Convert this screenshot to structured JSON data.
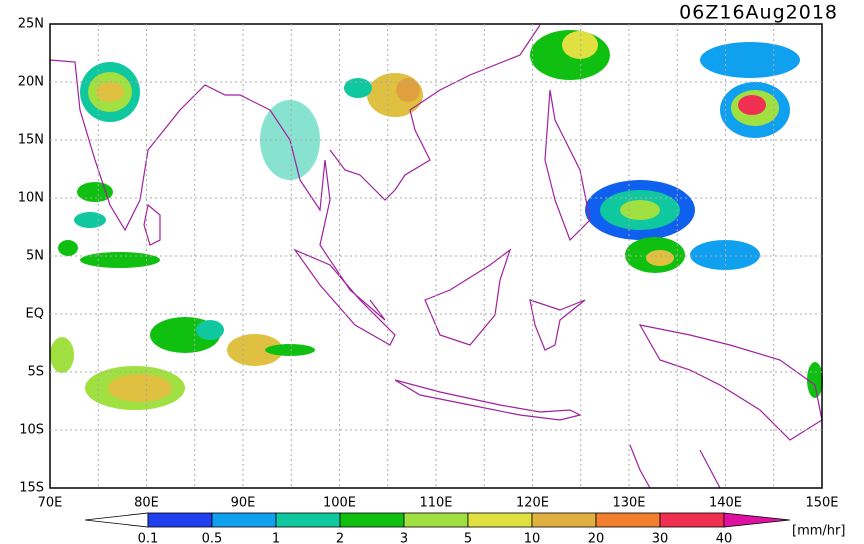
{
  "title": "06Z16Aug2018",
  "map": {
    "lat_labels": [
      "25N",
      "20N",
      "15N",
      "10N",
      "5N",
      "EQ",
      "5S",
      "10S",
      "15S"
    ],
    "lon_labels": [
      "70E",
      "80E",
      "90E",
      "100E",
      "110E",
      "120E",
      "130E",
      "140E",
      "150E"
    ]
  },
  "colorbar": {
    "labels": [
      "0.1",
      "0.5",
      "1",
      "2",
      "3",
      "5",
      "10",
      "20",
      "30",
      "40"
    ],
    "unit": "[mm/hr]"
  }
}
